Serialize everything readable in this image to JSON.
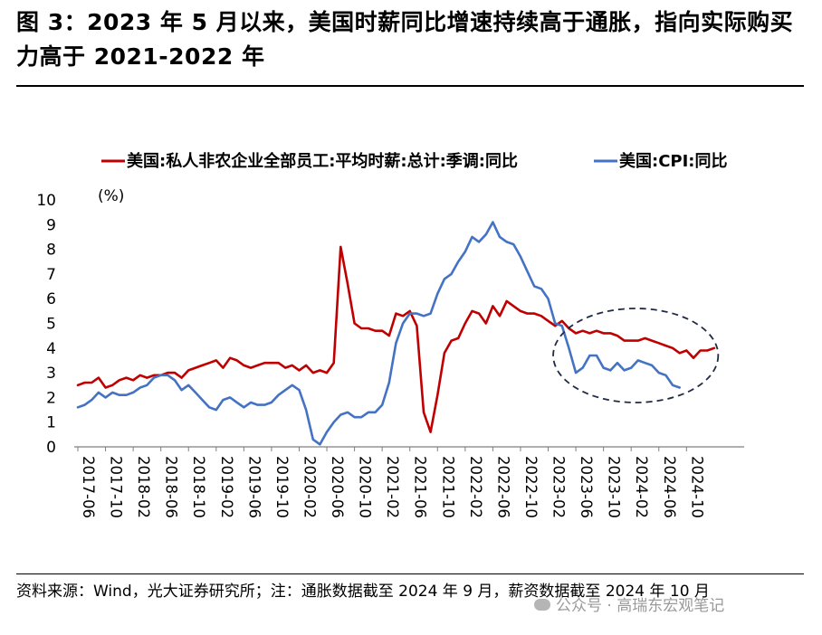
{
  "figure": {
    "title": "图 3：2023 年 5 月以来，美国时薪同比增速持续高于通胀，指向实际购买力高于 2021-2022 年",
    "source": "资料来源：Wind，光大证券研究所；注：通胀数据截至 2024 年 9 月，薪资数据截至 2024 年 10 月",
    "watermark": "公众号 · 高瑞东宏观笔记"
  },
  "chart_data": {
    "type": "line",
    "title": "",
    "xlabel": "",
    "ylabel": "(%)",
    "ylim": [
      0,
      10
    ],
    "yticks": [
      "0",
      "1",
      "2",
      "3",
      "4",
      "5",
      "6",
      "7",
      "8",
      "9",
      "10"
    ],
    "xticks": [
      "2017-06",
      "2017-10",
      "2018-02",
      "2018-06",
      "2018-10",
      "2019-02",
      "2019-06",
      "2019-10",
      "2020-02",
      "2020-06",
      "2020-10",
      "2021-02",
      "2021-06",
      "2021-10",
      "2022-02",
      "2022-06",
      "2022-10",
      "2023-02",
      "2023-06",
      "2023-10",
      "2024-02",
      "2024-06",
      "2024-10"
    ],
    "x_start": "2017-06",
    "legend_position": "top",
    "annotation": "dashed ellipse highlighting 2023-06 to 2024-10",
    "series": [
      {
        "name": "美国:私人非农企业全部员工:平均时薪:总计:季调:同比",
        "color": "#c00000",
        "values": [
          2.5,
          2.6,
          2.6,
          2.8,
          2.4,
          2.5,
          2.7,
          2.8,
          2.7,
          2.9,
          2.8,
          2.9,
          2.9,
          3.0,
          3.0,
          2.8,
          3.1,
          3.2,
          3.3,
          3.4,
          3.5,
          3.2,
          3.6,
          3.5,
          3.3,
          3.2,
          3.3,
          3.4,
          3.4,
          3.4,
          3.2,
          3.3,
          3.1,
          3.3,
          3.0,
          3.1,
          3.0,
          3.4,
          8.1,
          6.6,
          5.0,
          4.8,
          4.8,
          4.7,
          4.7,
          4.5,
          5.4,
          5.3,
          5.5,
          4.9,
          1.4,
          0.6,
          2.1,
          3.8,
          4.3,
          4.4,
          5.0,
          5.5,
          5.4,
          5.0,
          5.7,
          5.3,
          5.9,
          5.7,
          5.5,
          5.4,
          5.4,
          5.3,
          5.1,
          4.9,
          5.1,
          4.8,
          4.6,
          4.7,
          4.6,
          4.7,
          4.6,
          4.6,
          4.5,
          4.3,
          4.3,
          4.3,
          4.4,
          4.3,
          4.2,
          4.1,
          4.0,
          3.8,
          3.9,
          3.6,
          3.9,
          3.9,
          4.0
        ],
        "note": "薪资数据截至 2024 年 10 月"
      },
      {
        "name": "美国:CPI:同比",
        "color": "#4472c4",
        "values": [
          1.6,
          1.7,
          1.9,
          2.2,
          2.0,
          2.2,
          2.1,
          2.1,
          2.2,
          2.4,
          2.5,
          2.8,
          2.9,
          2.9,
          2.7,
          2.3,
          2.5,
          2.2,
          1.9,
          1.6,
          1.5,
          1.9,
          2.0,
          1.8,
          1.6,
          1.8,
          1.7,
          1.7,
          1.8,
          2.1,
          2.3,
          2.5,
          2.3,
          1.5,
          0.3,
          0.1,
          0.6,
          1.0,
          1.3,
          1.4,
          1.2,
          1.2,
          1.4,
          1.4,
          1.7,
          2.6,
          4.2,
          5.0,
          5.4,
          5.4,
          5.3,
          5.4,
          6.2,
          6.8,
          7.0,
          7.5,
          7.9,
          8.5,
          8.3,
          8.6,
          9.1,
          8.5,
          8.3,
          8.2,
          7.7,
          7.1,
          6.5,
          6.4,
          6.0,
          5.0,
          4.9,
          4.0,
          3.0,
          3.2,
          3.7,
          3.7,
          3.2,
          3.1,
          3.4,
          3.1,
          3.2,
          3.5,
          3.4,
          3.3,
          3.0,
          2.9,
          2.5,
          2.4
        ],
        "note": "通胀数据截至 2024 年 9 月"
      }
    ]
  }
}
